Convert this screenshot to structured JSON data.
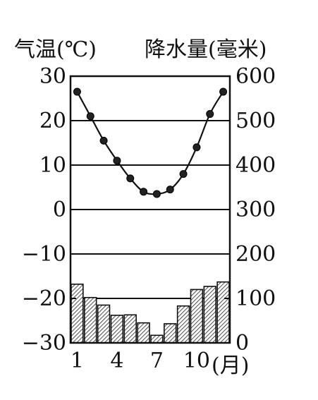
{
  "chart_data": {
    "type": "bar+line",
    "title": "",
    "left_axis_label": "气温(℃)",
    "right_axis_label": "降水量(毫米)",
    "x_unit_label": "(月)",
    "x_tick_labels": [
      "1",
      "4",
      "7",
      "10"
    ],
    "x_tick_months": [
      1,
      4,
      7,
      10
    ],
    "months": [
      1,
      2,
      3,
      4,
      5,
      6,
      7,
      8,
      9,
      10,
      11,
      12
    ],
    "temperature_ylim": [
      -30,
      30
    ],
    "temperature_ticks": [
      "30",
      "20",
      "10",
      "0",
      "−10",
      "−20",
      "−30"
    ],
    "temperature_tick_values": [
      30,
      20,
      10,
      0,
      -10,
      -20,
      -30
    ],
    "precip_ylim": [
      0,
      600
    ],
    "precip_ticks": [
      "600",
      "500",
      "400",
      "300",
      "200",
      "100",
      "0"
    ],
    "precip_tick_values": [
      600,
      500,
      400,
      300,
      200,
      100,
      0
    ],
    "temperature": [
      26.5,
      21,
      15.5,
      11,
      7,
      4,
      3.5,
      4.5,
      8,
      14,
      21.5,
      26.5
    ],
    "precipitation": [
      132,
      102,
      85,
      62,
      63,
      45,
      17,
      43,
      83,
      120,
      127,
      137
    ],
    "grid": true
  }
}
